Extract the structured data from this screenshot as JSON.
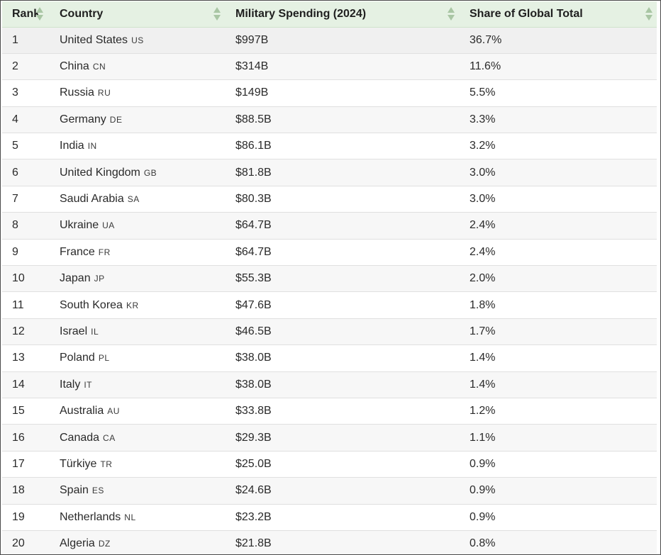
{
  "table": {
    "headers": {
      "rank": "Rank",
      "country": "Country",
      "spending": "Military Spending (2024)",
      "share": "Share of Global Total"
    },
    "sort_icon": "sort-arrows-icon",
    "header_color": "#e5f1e3",
    "rows": [
      {
        "rank": "1",
        "country": "United States",
        "code": "US",
        "spending": "$997B",
        "share": "36.7%"
      },
      {
        "rank": "2",
        "country": "China",
        "code": "CN",
        "spending": "$314B",
        "share": "11.6%"
      },
      {
        "rank": "3",
        "country": "Russia",
        "code": "RU",
        "spending": "$149B",
        "share": "5.5%"
      },
      {
        "rank": "4",
        "country": "Germany",
        "code": "DE",
        "spending": "$88.5B",
        "share": "3.3%"
      },
      {
        "rank": "5",
        "country": "India",
        "code": "IN",
        "spending": "$86.1B",
        "share": "3.2%"
      },
      {
        "rank": "6",
        "country": "United Kingdom",
        "code": "GB",
        "spending": "$81.8B",
        "share": "3.0%"
      },
      {
        "rank": "7",
        "country": "Saudi Arabia",
        "code": "SA",
        "spending": "$80.3B",
        "share": "3.0%"
      },
      {
        "rank": "8",
        "country": "Ukraine",
        "code": "UA",
        "spending": "$64.7B",
        "share": "2.4%"
      },
      {
        "rank": "9",
        "country": "France",
        "code": "FR",
        "spending": "$64.7B",
        "share": "2.4%"
      },
      {
        "rank": "10",
        "country": "Japan",
        "code": "JP",
        "spending": "$55.3B",
        "share": "2.0%"
      },
      {
        "rank": "11",
        "country": "South Korea",
        "code": "KR",
        "spending": "$47.6B",
        "share": "1.8%"
      },
      {
        "rank": "12",
        "country": "Israel",
        "code": "IL",
        "spending": "$46.5B",
        "share": "1.7%"
      },
      {
        "rank": "13",
        "country": "Poland",
        "code": "PL",
        "spending": "$38.0B",
        "share": "1.4%"
      },
      {
        "rank": "14",
        "country": "Italy",
        "code": "IT",
        "spending": "$38.0B",
        "share": "1.4%"
      },
      {
        "rank": "15",
        "country": "Australia",
        "code": "AU",
        "spending": "$33.8B",
        "share": "1.2%"
      },
      {
        "rank": "16",
        "country": "Canada",
        "code": "CA",
        "spending": "$29.3B",
        "share": "1.1%"
      },
      {
        "rank": "17",
        "country": "Türkiye",
        "code": "TR",
        "spending": "$25.0B",
        "share": "0.9%"
      },
      {
        "rank": "18",
        "country": "Spain",
        "code": "ES",
        "spending": "$24.6B",
        "share": "0.9%"
      },
      {
        "rank": "19",
        "country": "Netherlands",
        "code": "NL",
        "spending": "$23.2B",
        "share": "0.9%"
      },
      {
        "rank": "20",
        "country": "Algeria",
        "code": "DZ",
        "spending": "$21.8B",
        "share": "0.8%"
      }
    ]
  }
}
